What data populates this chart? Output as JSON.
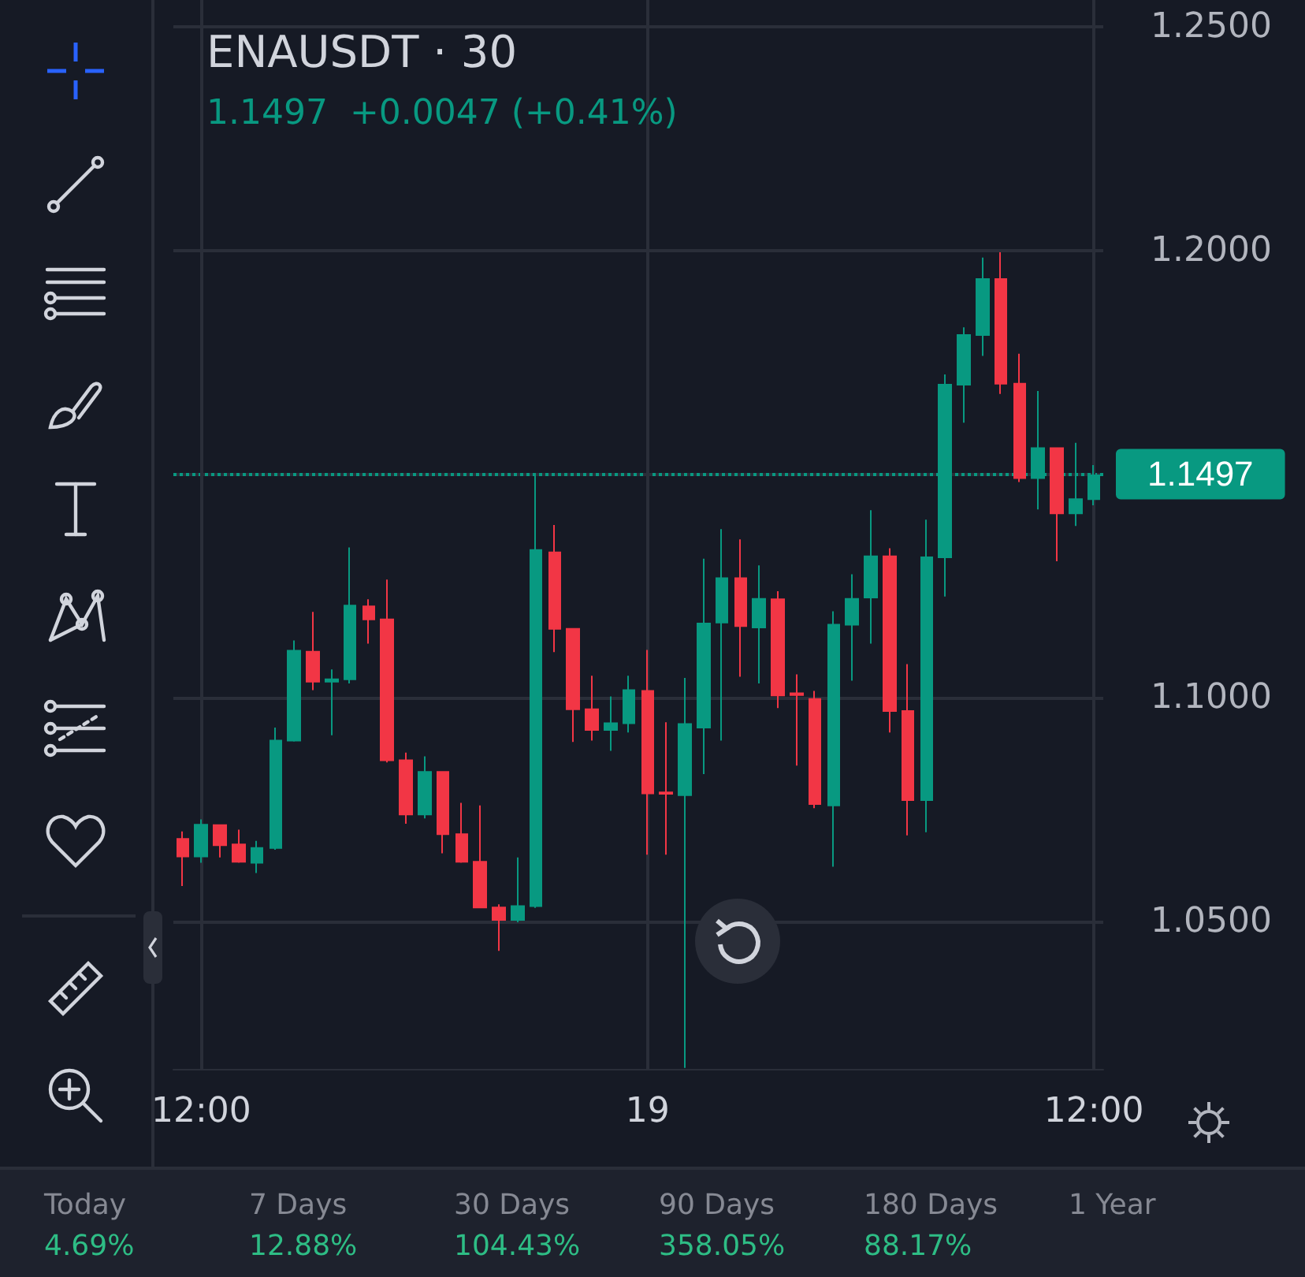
{
  "chart_data": {
    "type": "candlestick",
    "title": "ENAUSDT · 30",
    "subtitle": "1.1497  +0.0047 (+0.41%)",
    "categories": [
      null,
      "12:00",
      null,
      null,
      null,
      null,
      null,
      null,
      null,
      null,
      null,
      null,
      null,
      null,
      null,
      null,
      null,
      null,
      null,
      null,
      null,
      null,
      null,
      null,
      null,
      "19",
      null,
      null,
      null,
      null,
      null,
      null,
      null,
      null,
      null,
      null,
      null,
      null,
      null,
      null,
      null,
      null,
      null,
      null,
      null,
      null,
      null,
      null,
      null,
      "12:00"
    ],
    "ohlc": [
      [
        1.0684,
        1.0701,
        1.0579,
        1.0645
      ],
      [
        1.0645,
        1.0728,
        1.0631,
        1.0716
      ],
      [
        1.0715,
        1.0715,
        1.0643,
        1.067
      ],
      [
        1.0672,
        1.0705,
        1.0631,
        1.0633
      ],
      [
        1.0631,
        1.068,
        1.0608,
        1.0664
      ],
      [
        1.0664,
        1.0933,
        1.066,
        1.0904
      ],
      [
        1.0904,
        1.1128,
        1.0902,
        1.1105
      ],
      [
        1.1103,
        1.1192,
        1.1017,
        1.1036
      ],
      [
        1.1036,
        1.1063,
        1.0916,
        1.1041
      ],
      [
        1.1041,
        1.1336,
        1.1032,
        1.1206
      ],
      [
        1.1204,
        1.122,
        1.1121,
        1.1175
      ],
      [
        1.1175,
        1.1264,
        1.0855,
        1.086
      ],
      [
        1.086,
        1.0877,
        1.0718,
        1.0739
      ],
      [
        1.0739,
        1.0869,
        1.073,
        1.0834
      ],
      [
        1.0834,
        1.0834,
        1.0652,
        1.0695
      ],
      [
        1.0695,
        1.0765,
        1.0631,
        1.0633
      ],
      [
        1.0633,
        1.0759,
        1.053,
        1.0531
      ],
      [
        1.0531,
        1.0538,
        1.0434,
        1.0503
      ],
      [
        1.0503,
        1.0643,
        1.0498,
        1.0534
      ],
      [
        1.0534,
        1.1497,
        1.053,
        1.133
      ],
      [
        1.1325,
        1.1386,
        1.1102,
        1.1154
      ],
      [
        1.1154,
        1.1154,
        1.0901,
        1.0974
      ],
      [
        1.0974,
        1.1049,
        1.0904,
        1.0928
      ],
      [
        1.0928,
        1.1003,
        1.0881,
        1.0943
      ],
      [
        1.0943,
        1.1049,
        1.0922,
        1.1017
      ],
      [
        1.1015,
        1.1107,
        1.0649,
        1.0786
      ],
      [
        1.0788,
        1.0945,
        1.0649,
        1.0785
      ],
      [
        1.0782,
        1.1044,
        1.0172,
        1.0941
      ],
      [
        1.0933,
        1.1311,
        1.0829,
        1.1166
      ],
      [
        1.1168,
        1.1377,
        1.0904,
        1.1267
      ],
      [
        1.1267,
        1.1354,
        1.1047,
        1.116
      ],
      [
        1.1157,
        1.1296,
        1.1032,
        1.1221
      ],
      [
        1.122,
        1.1238,
        1.0977,
        1.1005
      ],
      [
        1.101,
        1.1052,
        1.0848,
        1.1006
      ],
      [
        1.0997,
        1.1015,
        1.0753,
        1.0762
      ],
      [
        1.0759,
        1.1193,
        1.0622,
        1.1163
      ],
      [
        1.1163,
        1.1276,
        1.1038,
        1.1221
      ],
      [
        1.1224,
        1.1419,
        1.1121,
        1.1316
      ],
      [
        1.1316,
        1.1334,
        1.0922,
        1.097
      ],
      [
        1.097,
        1.1075,
        1.0692,
        1.0771
      ],
      [
        1.0771,
        1.1398,
        1.0699,
        1.1314
      ],
      [
        1.1314,
        1.1723,
        1.1226,
        1.17
      ],
      [
        1.17,
        1.1828,
        1.1615,
        1.1811
      ],
      [
        1.1811,
        1.1984,
        1.1764,
        1.1936
      ],
      [
        1.1936,
        1.1996,
        1.1679,
        1.1702
      ],
      [
        1.1702,
        1.1769,
        1.1482,
        1.1491
      ],
      [
        1.1491,
        1.1686,
        1.1421,
        1.1558
      ],
      [
        1.1558,
        1.1558,
        1.1305,
        1.1412
      ],
      [
        1.1412,
        1.157,
        1.1384,
        1.1444
      ],
      [
        1.1444,
        1.152,
        1.143,
        1.1497
      ]
    ],
    "colors": [
      "#f23645",
      "#089981",
      "#f23645",
      "#f23645",
      "#089981",
      "#089981",
      "#089981",
      "#f23645",
      "#089981",
      "#089981",
      "#f23645",
      "#f23645",
      "#f23645",
      "#089981",
      "#f23645",
      "#f23645",
      "#f23645",
      "#f23645",
      "#089981",
      "#089981",
      "#f23645",
      "#f23645",
      "#f23645",
      "#089981",
      "#089981",
      "#f23645",
      "#f23645",
      "#089981",
      "#089981",
      "#089981",
      "#f23645",
      "#089981",
      "#f23645",
      "#f23645",
      "#f23645",
      "#089981",
      "#089981",
      "#089981",
      "#f23645",
      "#f23645",
      "#089981",
      "#089981",
      "#089981",
      "#089981",
      "#f23645",
      "#f23645",
      "#089981",
      "#f23645",
      "#089981",
      "#089981"
    ],
    "ylim": [
      1.017,
      1.256
    ],
    "yticks": [
      {
        "value": 1.05,
        "label": "1.0500"
      },
      {
        "value": 1.1,
        "label": "1.1000"
      },
      {
        "value": 1.15,
        "label": null
      },
      {
        "value": 1.2,
        "label": "1.2000"
      },
      {
        "value": 1.25,
        "label": "1.2500"
      }
    ],
    "grid": true,
    "ref_lines": [
      {
        "axis": "y",
        "value": 1.1497,
        "label": "1.1497",
        "color": "#089981",
        "line_style": "dotted"
      }
    ],
    "annotations": [
      "Today",
      "4.69%",
      "7 Days",
      "12.88%",
      "30 Days",
      "104.43%",
      "90 Days",
      "358.05%",
      "180 Days",
      "88.17%",
      "1 Year"
    ]
  }
}
